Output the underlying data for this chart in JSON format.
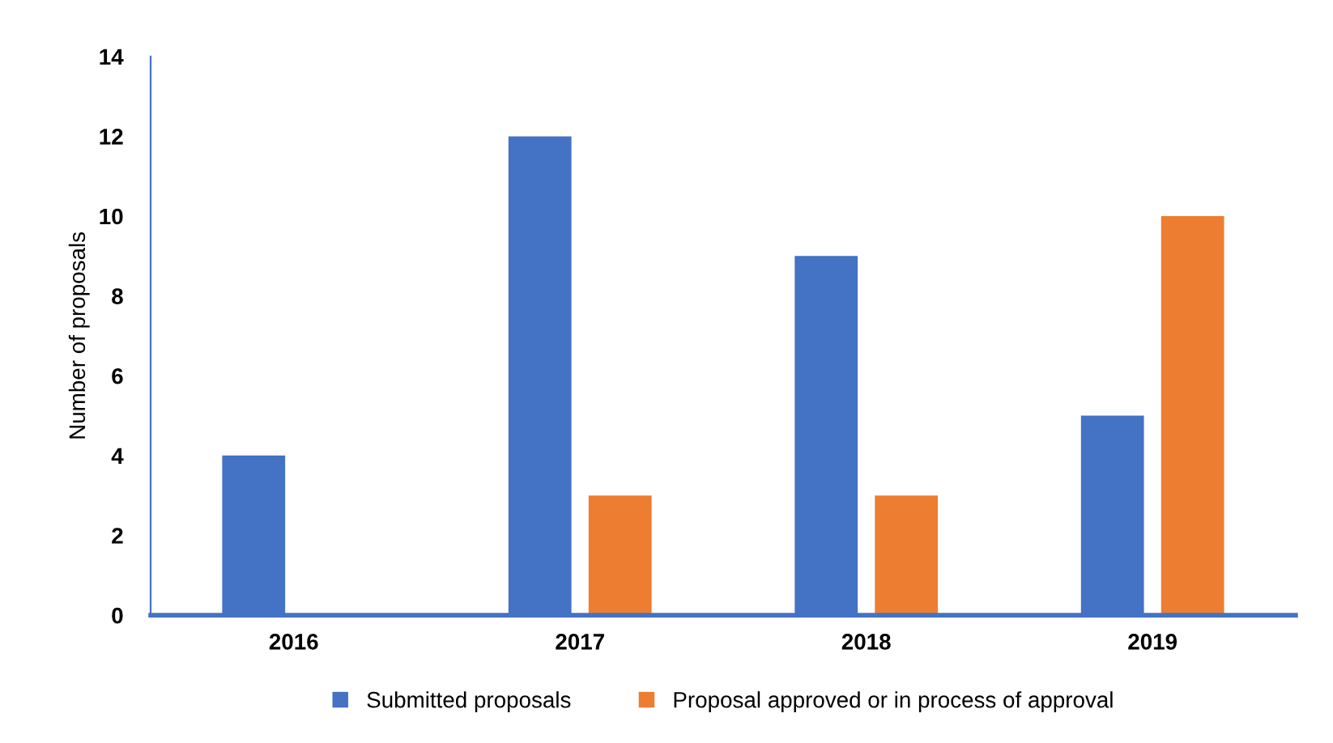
{
  "chart_data": {
    "type": "bar",
    "ylabel": "Number of proposals",
    "categories": [
      "2016",
      "2017",
      "2018",
      "2019"
    ],
    "series": [
      {
        "name": "Submitted proposals",
        "color": "#4472c4",
        "values": [
          4,
          12,
          9,
          5
        ]
      },
      {
        "name": "Proposal approved or in process of approval",
        "color": "#ed7d31",
        "values": [
          0,
          3,
          3,
          10
        ]
      }
    ],
    "ylim": [
      0,
      14
    ],
    "yticks": [
      0,
      2,
      4,
      6,
      8,
      10,
      12,
      14
    ],
    "grid": false,
    "legend": "bottom"
  }
}
